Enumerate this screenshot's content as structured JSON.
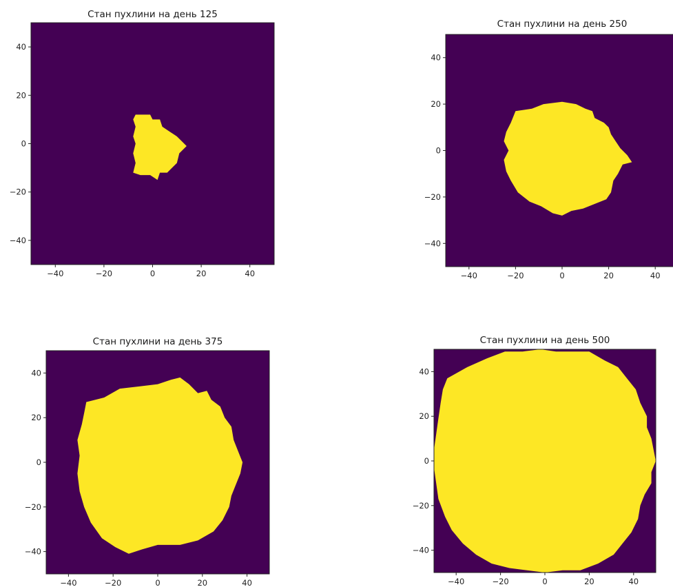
{
  "chart_data": [
    {
      "type": "heatmap",
      "title": "Стан пухлини на день 125",
      "xlim": [
        -50,
        50
      ],
      "ylim": [
        -50,
        50
      ],
      "x_ticks": [
        "−40",
        "−20",
        "0",
        "20",
        "40"
      ],
      "y_ticks": [
        "40",
        "20",
        "0",
        "−20",
        "−40"
      ],
      "colors": {
        "background": "#440154",
        "tumor": "#FDE725"
      },
      "tumor_extent": {
        "x": [
          -8,
          14
        ],
        "y": [
          -15,
          12
        ]
      }
    },
    {
      "type": "heatmap",
      "title": "Стан пухлини на день 250",
      "xlim": [
        -50,
        50
      ],
      "ylim": [
        -50,
        50
      ],
      "x_ticks": [
        "−40",
        "−20",
        "0",
        "20",
        "40"
      ],
      "y_ticks": [
        "40",
        "20",
        "0",
        "−20",
        "−40"
      ],
      "colors": {
        "background": "#440154",
        "tumor": "#FDE725"
      },
      "tumor_extent": {
        "x": [
          -25,
          30
        ],
        "y": [
          -28,
          21
        ]
      }
    },
    {
      "type": "heatmap",
      "title": "Стан пухлини на день 375",
      "xlim": [
        -50,
        50
      ],
      "ylim": [
        -50,
        50
      ],
      "x_ticks": [
        "−40",
        "−20",
        "0",
        "20",
        "40"
      ],
      "y_ticks": [
        "40",
        "20",
        "0",
        "−20",
        "−40"
      ],
      "colors": {
        "background": "#440154",
        "tumor": "#FDE725"
      },
      "tumor_extent": {
        "x": [
          -36,
          38
        ],
        "y": [
          -42,
          38
        ]
      }
    },
    {
      "type": "heatmap",
      "title": "Стан пухлини на день 500",
      "xlim": [
        -50,
        50
      ],
      "ylim": [
        -50,
        50
      ],
      "x_ticks": [
        "−40",
        "−20",
        "0",
        "20",
        "40"
      ],
      "y_ticks": [
        "40",
        "20",
        "0",
        "−20",
        "−40"
      ],
      "colors": {
        "background": "#440154",
        "tumor": "#FDE725"
      },
      "tumor_extent": {
        "x": [
          -50,
          50
        ],
        "y": [
          -50,
          50
        ]
      }
    }
  ]
}
